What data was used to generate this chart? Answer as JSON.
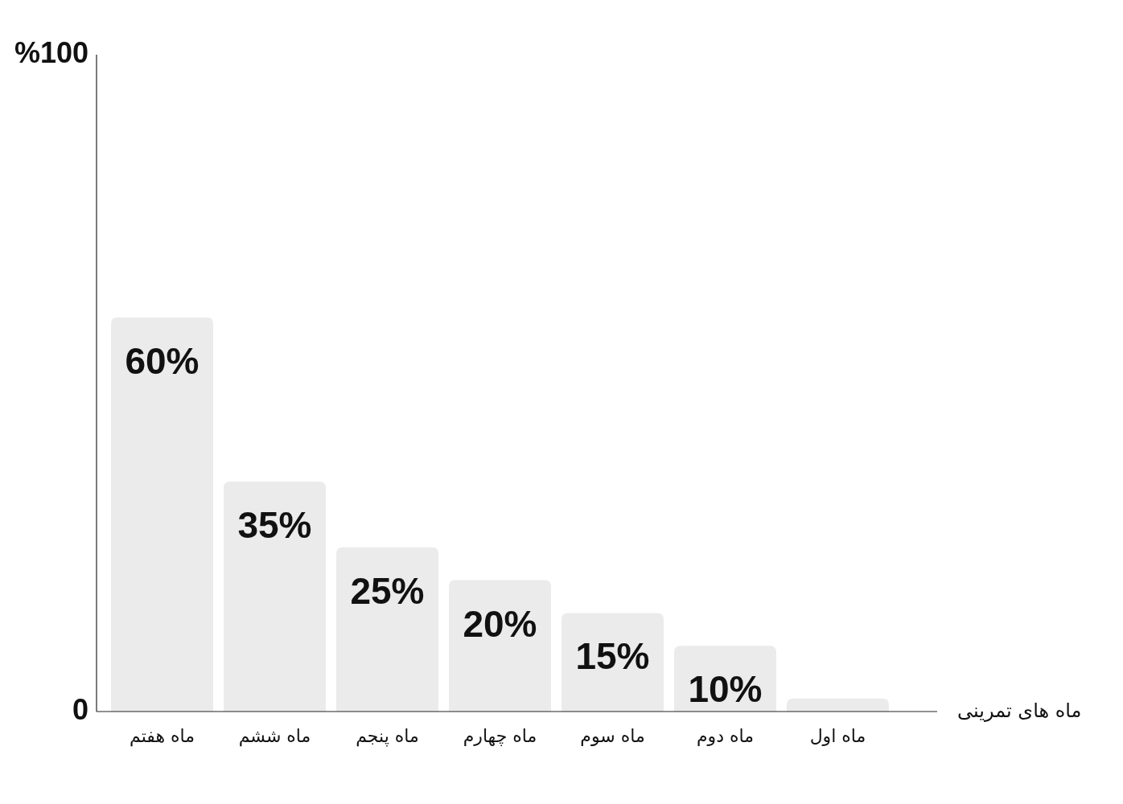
{
  "chart_data": {
    "type": "bar",
    "categories": [
      "ماه هفتم",
      "ماه ششم",
      "ماه پنجم",
      "ماه چهارم",
      "ماه سوم",
      "ماه دوم",
      "ماه اول"
    ],
    "values": [
      60,
      35,
      25,
      20,
      15,
      10,
      2
    ],
    "value_labels": [
      "60%",
      "35%",
      "25%",
      "20%",
      "15%",
      "10%",
      null
    ],
    "color": "#ebebeb",
    "xlabel": "ماه های تمرینی",
    "ylim": [
      0,
      100
    ],
    "yticks": [
      {
        "value": 0,
        "label": "0"
      },
      {
        "value": 100,
        "label": "%100"
      }
    ],
    "grid": false
  }
}
